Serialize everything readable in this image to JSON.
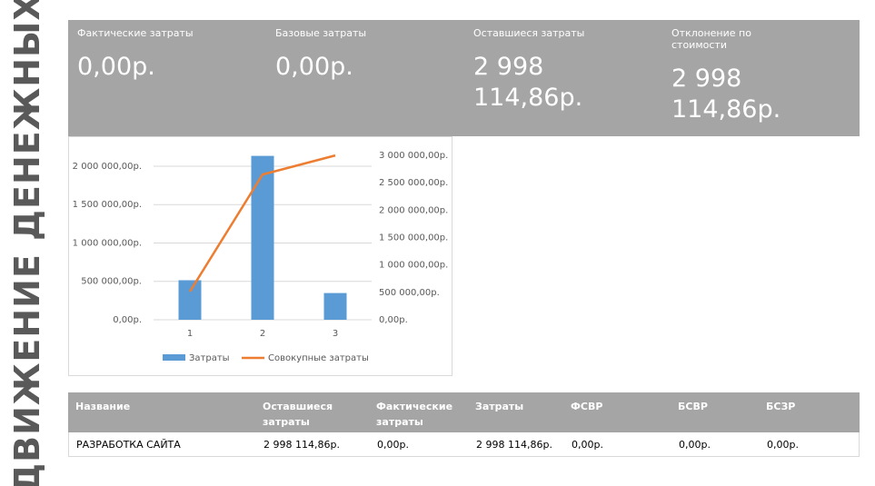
{
  "title": "ДВИЖЕНИЕ ДЕНЕЖНЫХ",
  "kpis": [
    {
      "label": "Фактические затраты",
      "value": "0,00р."
    },
    {
      "label": "Базовые затраты",
      "value": "0,00р."
    },
    {
      "label": "Оставшиеся затраты",
      "value": "2 998 114,86р."
    },
    {
      "label": "Отклонение по стоимости",
      "value": "2 998 114,86р."
    }
  ],
  "chart_data": {
    "type": "bar-line",
    "categories": [
      "1",
      "2",
      "3"
    ],
    "series": [
      {
        "name": "Затраты",
        "color": "#5b9bd5",
        "type": "bar",
        "values": [
          515000,
          2135000,
          348115
        ]
      },
      {
        "name": "Совокупные затраты",
        "color": "#ed7d31",
        "type": "line",
        "axis": "y2",
        "values": [
          515000,
          2650000,
          2998115
        ]
      }
    ],
    "ylim": [
      0,
      2142000
    ],
    "yticks": [
      {
        "value": 0,
        "label": "0,00р."
      },
      {
        "value": 500000,
        "label": "500 000,00р."
      },
      {
        "value": 1000000,
        "label": "1 000 000,00р."
      },
      {
        "value": 1500000,
        "label": "1 500 000,00р."
      },
      {
        "value": 2000000,
        "label": "2 000 000,00р."
      }
    ],
    "y2lim": [
      0,
      3000000
    ],
    "y2ticks": [
      {
        "value": 0,
        "label": "0,00р."
      },
      {
        "value": 500000,
        "label": "500 000,00р."
      },
      {
        "value": 1000000,
        "label": "1 000 000,00р."
      },
      {
        "value": 1500000,
        "label": "1 500 000,00р."
      },
      {
        "value": 2000000,
        "label": "2 000 000,00р."
      },
      {
        "value": 2500000,
        "label": "2 500 000,00р."
      },
      {
        "value": 3000000,
        "label": "3 000 000,00р."
      }
    ],
    "grid": true,
    "legend": "bottom"
  },
  "table": {
    "header": [
      "Название",
      "Оставшиеся затраты",
      "Фактические затраты",
      "Затраты",
      "ФСВР",
      "БСВР",
      "БСЗР"
    ],
    "rows": [
      [
        "РАЗРАБОТКА САЙТА",
        "2 998 114,86р.",
        "0,00р.",
        "2 998 114,86р.",
        "0,00р.",
        "0,00р.",
        "0,00р."
      ]
    ]
  }
}
